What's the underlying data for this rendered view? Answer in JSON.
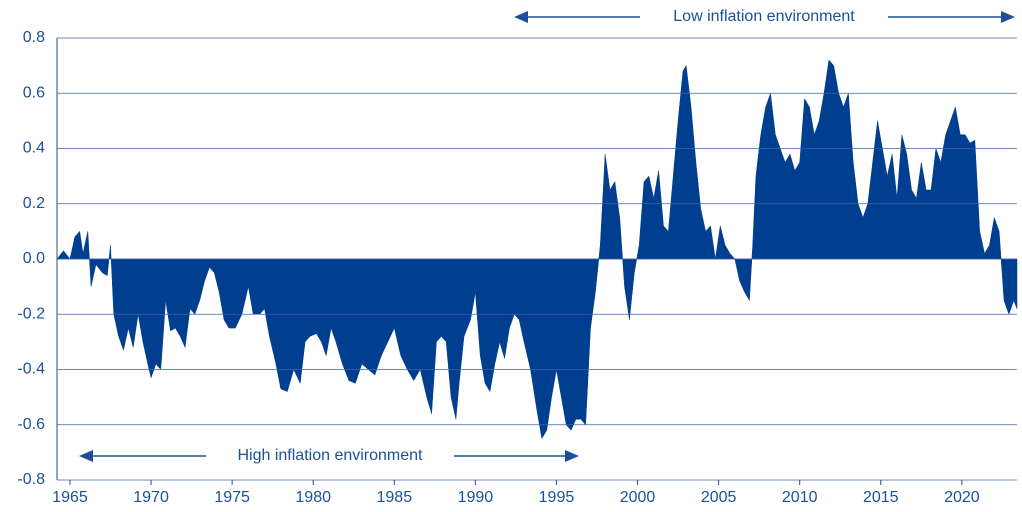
{
  "chart_data": {
    "type": "area",
    "annotations": [
      "Low inflation environment",
      "High inflation environment"
    ],
    "color": "#003f8f",
    "xlim": [
      1964.2,
      2023.4
    ],
    "ylim": [
      -0.8,
      0.8
    ],
    "xticks": [
      1965,
      1970,
      1975,
      1980,
      1985,
      1990,
      1995,
      2000,
      2005,
      2010,
      2015,
      2020
    ],
    "yticks": [
      -0.8,
      -0.6,
      -0.4,
      -0.2,
      {
        "value": 0,
        "label": "0.0"
      },
      0.2,
      0.4,
      0.6,
      0.8
    ],
    "grid": true,
    "x": [
      1964.2,
      1964.6,
      1965.0,
      1965.3,
      1965.6,
      1965.8,
      1966.1,
      1966.3,
      1966.6,
      1967.0,
      1967.3,
      1967.5,
      1967.7,
      1968.0,
      1968.3,
      1968.6,
      1968.9,
      1969.2,
      1969.5,
      1969.8,
      1970.0,
      1970.3,
      1970.6,
      1970.9,
      1971.2,
      1971.5,
      1971.8,
      1972.1,
      1972.4,
      1972.7,
      1973.0,
      1973.3,
      1973.6,
      1973.9,
      1974.2,
      1974.5,
      1974.8,
      1975.2,
      1975.6,
      1976.0,
      1976.3,
      1976.7,
      1977.0,
      1977.3,
      1977.7,
      1978.0,
      1978.4,
      1978.8,
      1979.2,
      1979.5,
      1979.8,
      1980.2,
      1980.5,
      1980.8,
      1981.1,
      1981.4,
      1981.8,
      1982.2,
      1982.6,
      1983.0,
      1983.4,
      1983.8,
      1984.2,
      1984.6,
      1985.0,
      1985.4,
      1985.8,
      1986.2,
      1986.6,
      1987.0,
      1987.3,
      1987.6,
      1987.9,
      1988.2,
      1988.5,
      1988.8,
      1989.0,
      1989.3,
      1989.7,
      1990.0,
      1990.3,
      1990.6,
      1990.9,
      1991.2,
      1991.5,
      1991.8,
      1992.1,
      1992.4,
      1992.7,
      1993.0,
      1993.4,
      1993.8,
      1994.1,
      1994.4,
      1994.7,
      1995.0,
      1995.3,
      1995.6,
      1995.9,
      1996.2,
      1996.5,
      1996.8,
      1997.1,
      1997.4,
      1997.7,
      1998.0,
      1998.3,
      1998.6,
      1998.9,
      1999.2,
      1999.5,
      1999.8,
      2000.1,
      2000.4,
      2000.7,
      2001.0,
      2001.3,
      2001.6,
      2001.9,
      2002.2,
      2002.5,
      2002.8,
      2003.0,
      2003.3,
      2003.6,
      2003.9,
      2004.2,
      2004.5,
      2004.8,
      2005.1,
      2005.4,
      2005.7,
      2006.0,
      2006.3,
      2006.6,
      2006.9,
      2007.1,
      2007.3,
      2007.6,
      2007.9,
      2008.2,
      2008.5,
      2008.8,
      2009.1,
      2009.4,
      2009.7,
      2010.0,
      2010.3,
      2010.6,
      2010.9,
      2011.2,
      2011.5,
      2011.8,
      2012.1,
      2012.4,
      2012.7,
      2013.0,
      2013.3,
      2013.6,
      2013.9,
      2014.2,
      2014.5,
      2014.8,
      2015.1,
      2015.4,
      2015.7,
      2016.0,
      2016.3,
      2016.6,
      2016.9,
      2017.2,
      2017.5,
      2017.8,
      2018.1,
      2018.4,
      2018.7,
      2019.0,
      2019.3,
      2019.6,
      2019.9,
      2020.2,
      2020.5,
      2020.8,
      2021.1,
      2021.4,
      2021.7,
      2022.0,
      2022.3,
      2022.6,
      2022.9,
      2023.2,
      2023.4
    ],
    "values": [
      0.0,
      0.03,
      0.0,
      0.08,
      0.1,
      0.02,
      0.1,
      -0.1,
      -0.02,
      -0.05,
      -0.06,
      0.05,
      -0.2,
      -0.28,
      -0.33,
      -0.25,
      -0.32,
      -0.2,
      -0.3,
      -0.38,
      -0.43,
      -0.38,
      -0.4,
      -0.15,
      -0.26,
      -0.25,
      -0.28,
      -0.32,
      -0.18,
      -0.2,
      -0.15,
      -0.08,
      -0.03,
      -0.05,
      -0.12,
      -0.22,
      -0.25,
      -0.25,
      -0.2,
      -0.1,
      -0.2,
      -0.2,
      -0.18,
      -0.28,
      -0.38,
      -0.47,
      -0.48,
      -0.4,
      -0.45,
      -0.3,
      -0.28,
      -0.27,
      -0.3,
      -0.35,
      -0.25,
      -0.3,
      -0.38,
      -0.44,
      -0.45,
      -0.38,
      -0.4,
      -0.42,
      -0.35,
      -0.3,
      -0.25,
      -0.35,
      -0.4,
      -0.44,
      -0.4,
      -0.5,
      -0.56,
      -0.3,
      -0.28,
      -0.3,
      -0.5,
      -0.58,
      -0.45,
      -0.28,
      -0.22,
      -0.12,
      -0.35,
      -0.45,
      -0.48,
      -0.38,
      -0.3,
      -0.36,
      -0.25,
      -0.2,
      -0.22,
      -0.3,
      -0.4,
      -0.55,
      -0.65,
      -0.62,
      -0.5,
      -0.4,
      -0.5,
      -0.6,
      -0.62,
      -0.58,
      -0.58,
      -0.6,
      -0.25,
      -0.12,
      0.05,
      0.38,
      0.25,
      0.28,
      0.15,
      -0.1,
      -0.22,
      -0.05,
      0.05,
      0.28,
      0.3,
      0.22,
      0.32,
      0.12,
      0.1,
      0.3,
      0.5,
      0.68,
      0.7,
      0.55,
      0.35,
      0.18,
      0.1,
      0.12,
      0.0,
      0.12,
      0.05,
      0.02,
      0.0,
      -0.08,
      -0.12,
      -0.15,
      0.05,
      0.3,
      0.45,
      0.55,
      0.6,
      0.45,
      0.4,
      0.35,
      0.38,
      0.32,
      0.35,
      0.58,
      0.55,
      0.45,
      0.5,
      0.6,
      0.72,
      0.7,
      0.6,
      0.55,
      0.6,
      0.35,
      0.2,
      0.15,
      0.2,
      0.35,
      0.5,
      0.4,
      0.3,
      0.38,
      0.22,
      0.45,
      0.38,
      0.25,
      0.22,
      0.35,
      0.25,
      0.25,
      0.4,
      0.35,
      0.45,
      0.5,
      0.55,
      0.45,
      0.45,
      0.42,
      0.43,
      0.1,
      0.02,
      0.05,
      0.15,
      0.1,
      -0.15,
      -0.2,
      -0.15,
      -0.18
    ]
  }
}
